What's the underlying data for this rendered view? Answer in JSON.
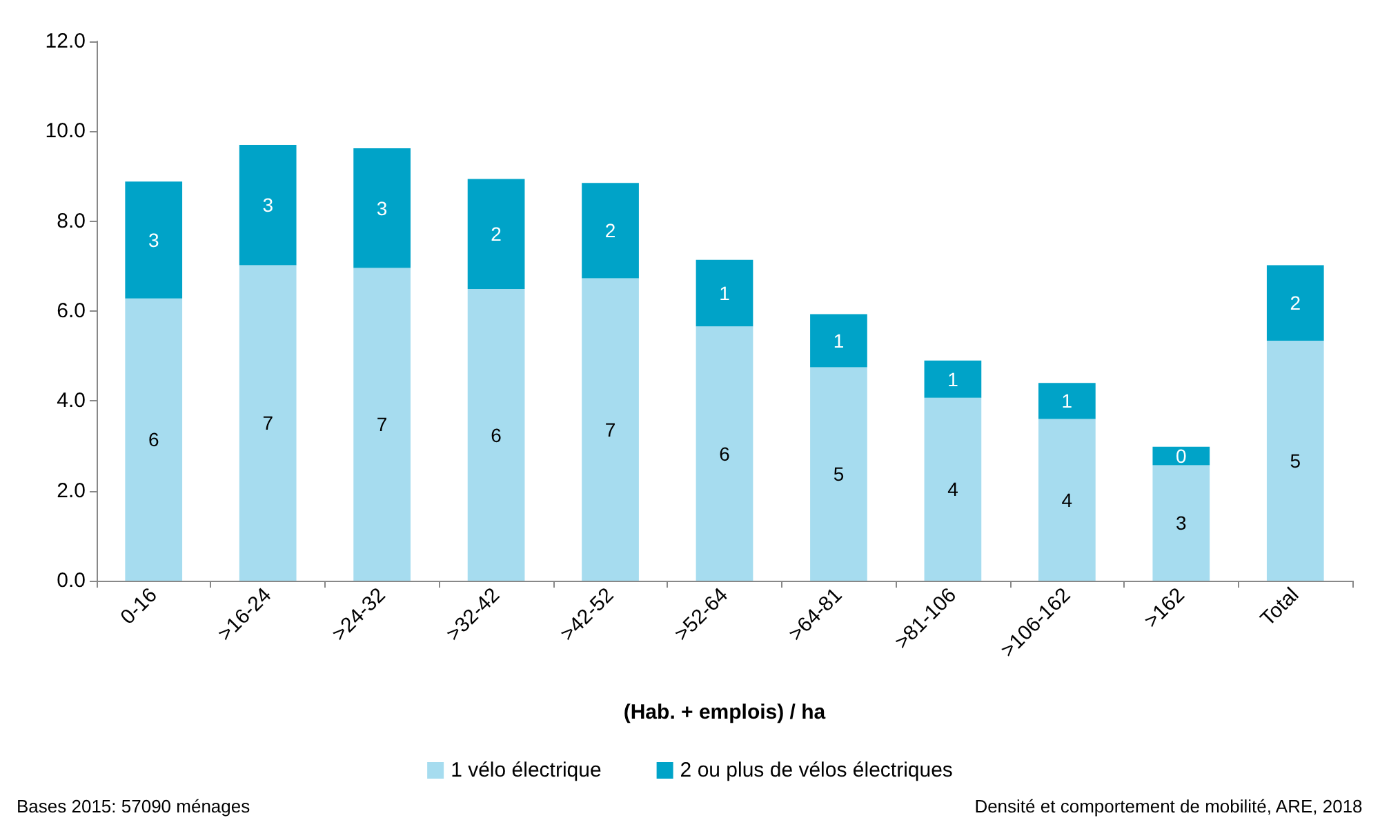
{
  "chart_data": {
    "type": "bar",
    "stacked": true,
    "xlabel": "(Hab. + emplois) / ha",
    "categories": [
      "0-16",
      ">16-24",
      ">24-32",
      ">32-42",
      ">42-52",
      ">52-64",
      ">64-81",
      ">81-106",
      ">106-162",
      ">162",
      "Total"
    ],
    "series": [
      {
        "name": "1 vélo électrique",
        "color": "#a6dcef",
        "values": [
          6.28,
          7.02,
          6.96,
          6.49,
          6.73,
          5.66,
          4.75,
          4.07,
          3.6,
          2.57,
          5.34
        ],
        "value_labels": [
          "6",
          "7",
          "7",
          "6",
          "7",
          "6",
          "5",
          "4",
          "4",
          "3",
          "5"
        ]
      },
      {
        "name": "2 ou plus de vélos électriques",
        "color": "#00a3c8",
        "values": [
          2.6,
          2.68,
          2.66,
          2.45,
          2.12,
          1.48,
          1.18,
          0.83,
          0.8,
          0.41,
          1.68
        ],
        "value_labels": [
          "3",
          "3",
          "3",
          "2",
          "2",
          "1",
          "1",
          "1",
          "1",
          "0",
          "2"
        ]
      }
    ],
    "ylim": [
      0,
      12
    ],
    "yticks": [
      {
        "value": 0,
        "label": "0.0"
      },
      {
        "value": 2,
        "label": "2.0"
      },
      {
        "value": 4,
        "label": "4.0"
      },
      {
        "value": 6,
        "label": "6.0"
      },
      {
        "value": 8,
        "label": "8.0"
      },
      {
        "value": 10,
        "label": "10.0"
      },
      {
        "value": 12,
        "label": "12.0"
      }
    ],
    "grid": false,
    "legend": "bottom",
    "annotations": [
      "Bases 2015: 57090 ménages",
      "Densité et comportement de mobilité, ARE, 2018"
    ]
  }
}
